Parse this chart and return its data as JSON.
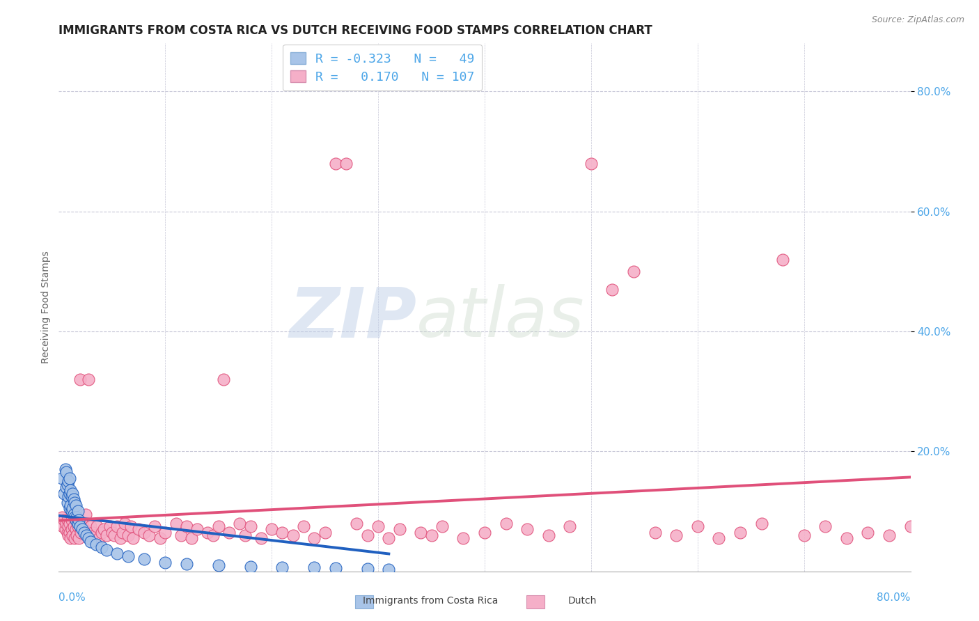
{
  "title": "IMMIGRANTS FROM COSTA RICA VS DUTCH RECEIVING FOOD STAMPS CORRELATION CHART",
  "source": "Source: ZipAtlas.com",
  "ylabel": "Receiving Food Stamps",
  "legend_label1": "Immigrants from Costa Rica",
  "legend_label2": "Dutch",
  "R1": -0.323,
  "N1": 49,
  "R2": 0.17,
  "N2": 107,
  "color_blue": "#a8c4e8",
  "color_pink": "#f5afc8",
  "line_color_blue": "#2060c0",
  "line_color_pink": "#e0507a",
  "tick_color": "#4da6e8",
  "watermark_zip": "ZIP",
  "watermark_atlas": "atlas",
  "background_color": "#ffffff",
  "grid_color": "#c8c8d8",
  "xlim": [
    0.0,
    0.8
  ],
  "ylim": [
    0.0,
    0.88
  ],
  "ytick_vals": [
    0.2,
    0.4,
    0.6,
    0.8
  ],
  "ytick_labels": [
    "20.0%",
    "40.0%",
    "60.0%",
    "80.0%"
  ],
  "title_fontsize": 12,
  "axis_label_fontsize": 10,
  "tick_fontsize": 11,
  "legend_fontsize": 13,
  "source_fontsize": 9,
  "blue_x": [
    0.003,
    0.005,
    0.006,
    0.007,
    0.007,
    0.008,
    0.008,
    0.009,
    0.009,
    0.01,
    0.01,
    0.01,
    0.011,
    0.011,
    0.012,
    0.012,
    0.013,
    0.013,
    0.014,
    0.014,
    0.015,
    0.015,
    0.016,
    0.016,
    0.017,
    0.018,
    0.018,
    0.019,
    0.02,
    0.022,
    0.024,
    0.026,
    0.028,
    0.03,
    0.035,
    0.04,
    0.045,
    0.055,
    0.065,
    0.08,
    0.1,
    0.12,
    0.15,
    0.18,
    0.21,
    0.24,
    0.26,
    0.29,
    0.31
  ],
  "blue_y": [
    0.155,
    0.13,
    0.17,
    0.14,
    0.165,
    0.115,
    0.145,
    0.125,
    0.15,
    0.105,
    0.13,
    0.155,
    0.11,
    0.135,
    0.1,
    0.125,
    0.105,
    0.13,
    0.095,
    0.12,
    0.09,
    0.115,
    0.085,
    0.11,
    0.09,
    0.08,
    0.1,
    0.085,
    0.075,
    0.07,
    0.065,
    0.06,
    0.055,
    0.05,
    0.045,
    0.04,
    0.035,
    0.03,
    0.025,
    0.02,
    0.015,
    0.012,
    0.01,
    0.008,
    0.007,
    0.006,
    0.005,
    0.004,
    0.003
  ],
  "pink_x": [
    0.003,
    0.004,
    0.005,
    0.006,
    0.007,
    0.008,
    0.008,
    0.009,
    0.009,
    0.01,
    0.01,
    0.011,
    0.012,
    0.012,
    0.013,
    0.014,
    0.015,
    0.016,
    0.016,
    0.017,
    0.018,
    0.019,
    0.02,
    0.021,
    0.022,
    0.024,
    0.025,
    0.026,
    0.028,
    0.03,
    0.032,
    0.034,
    0.036,
    0.038,
    0.04,
    0.042,
    0.045,
    0.048,
    0.05,
    0.052,
    0.055,
    0.058,
    0.06,
    0.062,
    0.065,
    0.068,
    0.07,
    0.075,
    0.08,
    0.085,
    0.09,
    0.095,
    0.1,
    0.11,
    0.115,
    0.12,
    0.125,
    0.13,
    0.14,
    0.145,
    0.15,
    0.155,
    0.16,
    0.17,
    0.175,
    0.18,
    0.19,
    0.2,
    0.21,
    0.22,
    0.23,
    0.24,
    0.25,
    0.26,
    0.27,
    0.28,
    0.29,
    0.3,
    0.31,
    0.32,
    0.34,
    0.35,
    0.36,
    0.38,
    0.4,
    0.42,
    0.44,
    0.46,
    0.48,
    0.5,
    0.52,
    0.54,
    0.56,
    0.58,
    0.6,
    0.62,
    0.64,
    0.66,
    0.68,
    0.7,
    0.72,
    0.74,
    0.76,
    0.78,
    0.8,
    0.82,
    0.84
  ],
  "pink_y": [
    0.09,
    0.075,
    0.085,
    0.07,
    0.08,
    0.065,
    0.085,
    0.06,
    0.075,
    0.065,
    0.08,
    0.055,
    0.07,
    0.085,
    0.06,
    0.075,
    0.055,
    0.07,
    0.085,
    0.06,
    0.075,
    0.055,
    0.32,
    0.065,
    0.08,
    0.07,
    0.095,
    0.06,
    0.32,
    0.075,
    0.065,
    0.06,
    0.075,
    0.055,
    0.065,
    0.07,
    0.06,
    0.075,
    0.065,
    0.06,
    0.075,
    0.055,
    0.065,
    0.08,
    0.06,
    0.075,
    0.055,
    0.07,
    0.065,
    0.06,
    0.075,
    0.055,
    0.065,
    0.08,
    0.06,
    0.075,
    0.055,
    0.07,
    0.065,
    0.06,
    0.075,
    0.32,
    0.065,
    0.08,
    0.06,
    0.075,
    0.055,
    0.07,
    0.065,
    0.06,
    0.075,
    0.055,
    0.065,
    0.68,
    0.68,
    0.08,
    0.06,
    0.075,
    0.055,
    0.07,
    0.065,
    0.06,
    0.075,
    0.055,
    0.065,
    0.08,
    0.07,
    0.06,
    0.075,
    0.68,
    0.47,
    0.5,
    0.065,
    0.06,
    0.075,
    0.055,
    0.065,
    0.08,
    0.52,
    0.06,
    0.075,
    0.055,
    0.065,
    0.06,
    0.075,
    0.055,
    0.065
  ]
}
